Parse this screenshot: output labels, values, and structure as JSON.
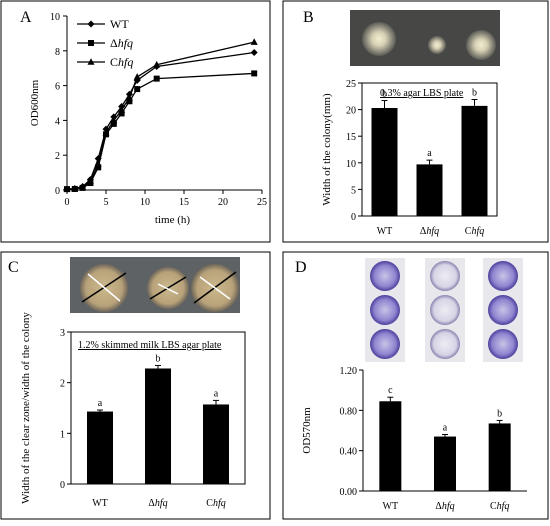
{
  "chart_data": [
    {
      "panel": "A",
      "type": "line",
      "xlabel": "time (h)",
      "ylabel": "OD600nm",
      "xlim": [
        0,
        25
      ],
      "ylim": [
        0,
        10
      ],
      "xticks": [
        "0",
        "5",
        "10",
        "15",
        "20",
        "25"
      ],
      "yticks": [
        "0",
        "2",
        "4",
        "6",
        "8",
        "10"
      ],
      "legend_position": "top-left",
      "series": [
        {
          "name": "WT",
          "marker": "diamond",
          "x": [
            0,
            1,
            2,
            3,
            4,
            5,
            6,
            7,
            8,
            9,
            11.5,
            24
          ],
          "y": [
            0.05,
            0.08,
            0.2,
            0.6,
            1.8,
            3.5,
            4.2,
            4.8,
            5.5,
            6.3,
            7.1,
            7.9
          ]
        },
        {
          "name": "Δhfq",
          "marker": "square",
          "x": [
            0,
            1,
            2,
            3,
            4,
            5,
            6,
            7,
            8,
            9,
            11.5,
            24
          ],
          "y": [
            0.05,
            0.06,
            0.12,
            0.4,
            1.3,
            3.2,
            3.8,
            4.4,
            5.1,
            5.8,
            6.4,
            6.7
          ]
        },
        {
          "name": "Chfq",
          "marker": "triangle",
          "x": [
            0,
            1,
            2,
            3,
            4,
            5,
            6,
            7,
            8,
            9,
            11.5,
            24
          ],
          "y": [
            0.05,
            0.07,
            0.15,
            0.5,
            1.5,
            3.3,
            4.0,
            4.6,
            5.3,
            6.5,
            7.2,
            8.5
          ]
        }
      ]
    },
    {
      "panel": "B",
      "type": "bar",
      "annotation": "0.3% agar LBS plate",
      "ylabel": "Width of the colony(mm)",
      "ylim": [
        0,
        25
      ],
      "yticks": [
        "0",
        "5",
        "10",
        "15",
        "20",
        "25"
      ],
      "categories": [
        "WT",
        "Δhfq",
        "Chfq"
      ],
      "values": [
        20.3,
        9.7,
        20.7
      ],
      "errors": [
        1.4,
        0.8,
        1.2
      ],
      "significance": [
        "b",
        "a",
        "b"
      ]
    },
    {
      "panel": "C",
      "type": "bar",
      "annotation": "1.2% skimmed milk LBS agar plate",
      "ylabel": "Width of the clear zone/width of the colony",
      "ylim": [
        0,
        3
      ],
      "yticks": [
        "0",
        "1",
        "2",
        "3"
      ],
      "categories": [
        "WT",
        "Δhfq",
        "Chfq"
      ],
      "values": [
        1.43,
        2.28,
        1.57
      ],
      "errors": [
        0.03,
        0.06,
        0.08
      ],
      "significance": [
        "a",
        "b",
        "a"
      ]
    },
    {
      "panel": "D",
      "type": "bar",
      "ylabel": "OD570nm",
      "ylim": [
        0,
        1.2
      ],
      "yticks": [
        "0.00",
        "0.40",
        "0.80",
        "1.20"
      ],
      "categories": [
        "WT",
        "Δhfq",
        "Chfq"
      ],
      "values": [
        0.89,
        0.54,
        0.67
      ],
      "errors": [
        0.04,
        0.02,
        0.03
      ],
      "significance": [
        "c",
        "a",
        "b"
      ]
    }
  ]
}
